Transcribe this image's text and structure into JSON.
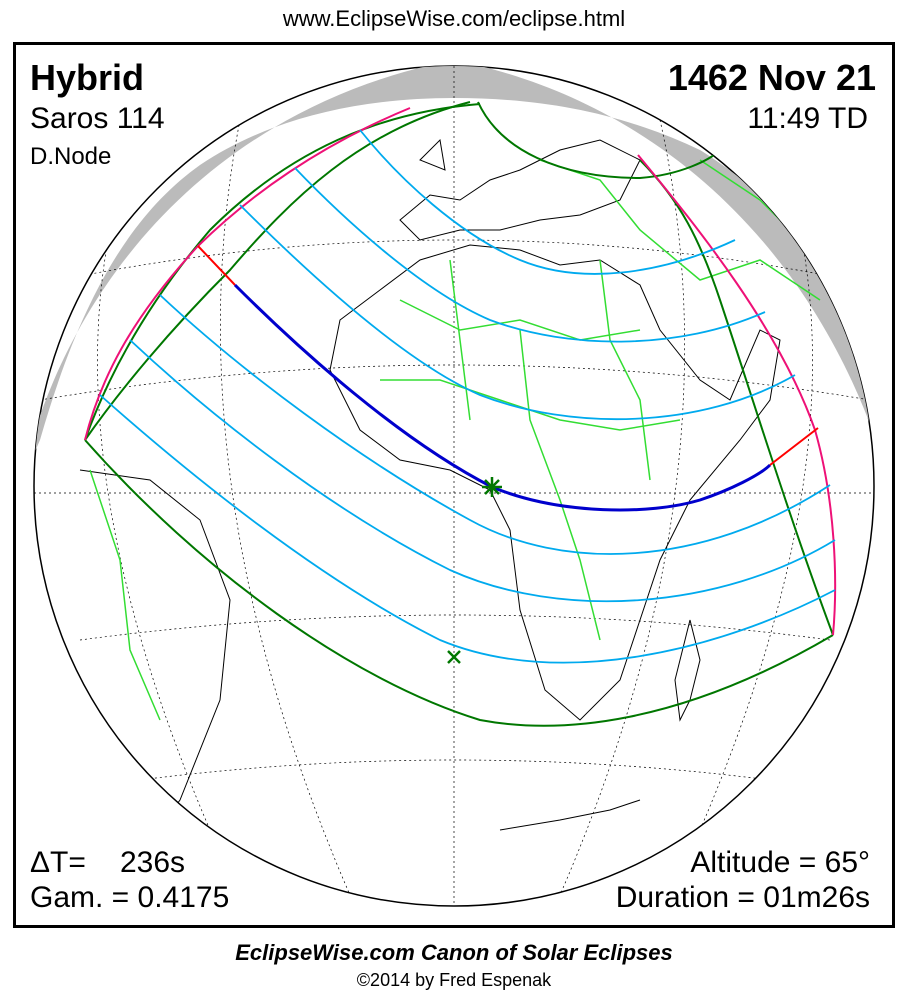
{
  "header": {
    "url": "www.EclipseWise.com/eclipse.html"
  },
  "eclipse": {
    "type": "Hybrid",
    "saros": "Saros 114",
    "node": "D.Node",
    "date": "1462 Nov 21",
    "time": "11:49 TD",
    "delta_t_label": "ΔT=",
    "delta_t_value": "236s",
    "gamma": "Gam. = 0.4175",
    "altitude": "Altitude = 65°",
    "duration": "Duration = 01m26s"
  },
  "footer": {
    "title": "EclipseWise.com Canon of Solar Eclipses",
    "copyright": "©2014 by Fred Espenak"
  },
  "colors": {
    "central_line": "#0000cc",
    "central_line_annular_ends": "#ff0000",
    "penumbral_limits": "#ee1177",
    "penumbral_contours": "#00aaee",
    "penumbral_boundaries": "#007700",
    "country_borders": "#33dd33",
    "night_shade": "#bbbbbb"
  },
  "markers": {
    "greatest_eclipse": "star-icon",
    "greatest_duration": "x-icon"
  }
}
